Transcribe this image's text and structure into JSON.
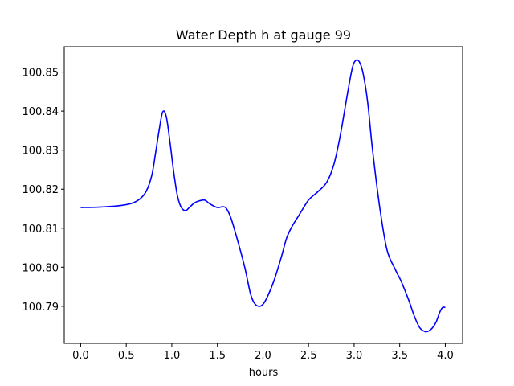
{
  "chart_data": {
    "type": "line",
    "title": "Water Depth h at gauge 99",
    "xlabel": "hours",
    "ylabel": "",
    "xlim": [
      -0.18,
      4.19
    ],
    "ylim": [
      100.7805,
      100.8565
    ],
    "xticks": [
      0.0,
      0.5,
      1.0,
      1.5,
      2.0,
      2.5,
      3.0,
      3.5,
      4.0
    ],
    "xtick_labels": [
      "0.0",
      "0.5",
      "1.0",
      "1.5",
      "2.0",
      "2.5",
      "3.0",
      "3.5",
      "4.0"
    ],
    "yticks": [
      100.79,
      100.8,
      100.81,
      100.82,
      100.83,
      100.84,
      100.85
    ],
    "ytick_labels": [
      "100.79",
      "100.80",
      "100.81",
      "100.82",
      "100.83",
      "100.84",
      "100.85"
    ],
    "grid": false,
    "series": [
      {
        "color": "#0000ff",
        "x": [
          0.0,
          0.2,
          0.4,
          0.55,
          0.65,
          0.72,
          0.78,
          0.82,
          0.86,
          0.9,
          0.94,
          0.98,
          1.02,
          1.06,
          1.1,
          1.15,
          1.2,
          1.25,
          1.3,
          1.36,
          1.42,
          1.5,
          1.56,
          1.6,
          1.65,
          1.72,
          1.8,
          1.86,
          1.9,
          1.95,
          2.0,
          2.05,
          2.12,
          2.2,
          2.26,
          2.32,
          2.4,
          2.5,
          2.6,
          2.7,
          2.78,
          2.85,
          2.92,
          2.98,
          3.02,
          3.06,
          3.1,
          3.15,
          3.2,
          3.28,
          3.36,
          3.45,
          3.52,
          3.6,
          3.66,
          3.72,
          3.78,
          3.82,
          3.86,
          3.9,
          3.94,
          3.97,
          4.0
        ],
        "y": [
          100.8153,
          100.8154,
          100.8157,
          100.8163,
          100.8175,
          100.8195,
          100.8235,
          100.829,
          100.835,
          100.8398,
          100.8385,
          100.832,
          100.8245,
          100.8185,
          100.8155,
          100.8145,
          100.8155,
          100.8165,
          100.817,
          100.8172,
          100.8162,
          100.8153,
          100.8155,
          100.815,
          100.8125,
          100.807,
          100.8,
          100.7935,
          100.791,
          100.79,
          100.7905,
          100.7925,
          100.7965,
          100.8025,
          100.8075,
          100.8105,
          100.8135,
          100.8172,
          100.8193,
          100.8218,
          100.8265,
          100.834,
          100.8435,
          100.851,
          100.853,
          100.8525,
          100.8495,
          100.842,
          100.8305,
          100.8155,
          100.8045,
          100.7995,
          100.7962,
          100.7915,
          100.7875,
          100.7845,
          100.7835,
          100.7837,
          100.7845,
          100.786,
          100.7885,
          100.7897,
          100.7897
        ]
      }
    ]
  }
}
